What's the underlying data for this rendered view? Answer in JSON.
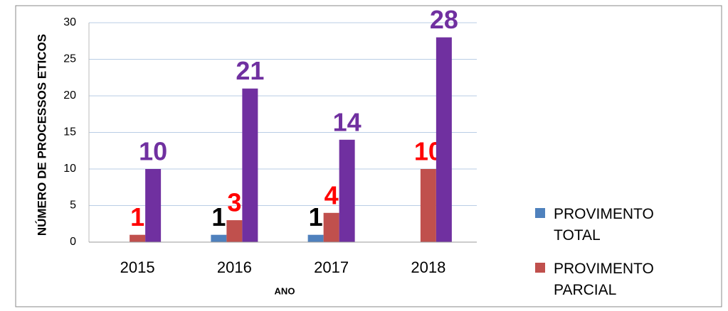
{
  "chart_data": {
    "type": "bar",
    "y_label": "NÚMERO DE PROCESSOS ETICOS",
    "x_label": "ANO",
    "categories": [
      "2015",
      "2016",
      "2017",
      "2018"
    ],
    "series": [
      {
        "name": "PROVIMENTO TOTAL",
        "color": "#4f81bd",
        "label_color": "#000000",
        "values": [
          null,
          1,
          1,
          null
        ]
      },
      {
        "name": "PROVIMENTO PARCIAL",
        "color": "#c0504d",
        "label_color": "#ff0000",
        "values": [
          1,
          3,
          4,
          10
        ]
      },
      {
        "color": "#7030a0",
        "label_color": "#7030a0",
        "values": [
          10,
          21,
          14,
          28
        ]
      }
    ],
    "ylim": [
      0,
      30
    ],
    "yticks": [
      0,
      5,
      10,
      15,
      20,
      25,
      30
    ],
    "grid": true
  }
}
